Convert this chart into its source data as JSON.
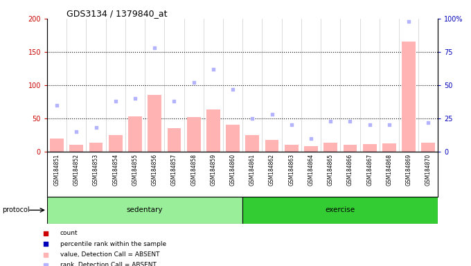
{
  "title": "GDS3134 / 1379840_at",
  "samples": [
    "GSM184851",
    "GSM184852",
    "GSM184853",
    "GSM184854",
    "GSM184855",
    "GSM184856",
    "GSM184857",
    "GSM184858",
    "GSM184859",
    "GSM184860",
    "GSM184861",
    "GSM184862",
    "GSM184863",
    "GSM184864",
    "GSM184865",
    "GSM184866",
    "GSM184867",
    "GSM184868",
    "GSM184869",
    "GSM184870"
  ],
  "value_absent": [
    20,
    10,
    13,
    25,
    53,
    85,
    35,
    52,
    63,
    40,
    25,
    18,
    10,
    8,
    13,
    10,
    11,
    12,
    165,
    13
  ],
  "rank_absent": [
    35,
    15,
    18,
    38,
    40,
    78,
    38,
    52,
    62,
    47,
    25,
    28,
    20,
    10,
    23,
    23,
    20,
    20,
    98,
    22
  ],
  "sedentary_count": 10,
  "exercise_count": 10,
  "sedentary_label": "sedentary",
  "exercise_label": "exercise",
  "protocol_label": "protocol",
  "ylim_left": [
    0,
    200
  ],
  "ylim_right": [
    0,
    100
  ],
  "yticks_left": [
    0,
    50,
    100,
    150,
    200
  ],
  "yticks_right": [
    0,
    25,
    50,
    75,
    100
  ],
  "yticklabels_right": [
    "0",
    "25",
    "50",
    "75",
    "100%"
  ],
  "yticklabels_left": [
    "0",
    "50",
    "100",
    "150",
    "200"
  ],
  "color_value_absent": "#ffb3b3",
  "color_rank_absent": "#b3b3ff",
  "color_count": "#cc0000",
  "color_pct_rank": "#0000cc",
  "color_left_tick": "#cc0000",
  "color_right_tick": "#0000bb",
  "color_sedentary": "#99ee99",
  "color_exercise": "#33cc33",
  "xtick_bg": "#cccccc",
  "plot_bg": "white",
  "legend_items": [
    {
      "label": "count",
      "color": "#cc0000",
      "marker": "s"
    },
    {
      "label": "percentile rank within the sample",
      "color": "#0000bb",
      "marker": "s"
    },
    {
      "label": "value, Detection Call = ABSENT",
      "color": "#ffb3b3",
      "marker": "s"
    },
    {
      "label": "rank, Detection Call = ABSENT",
      "color": "#b3b3ff",
      "marker": "s"
    }
  ]
}
